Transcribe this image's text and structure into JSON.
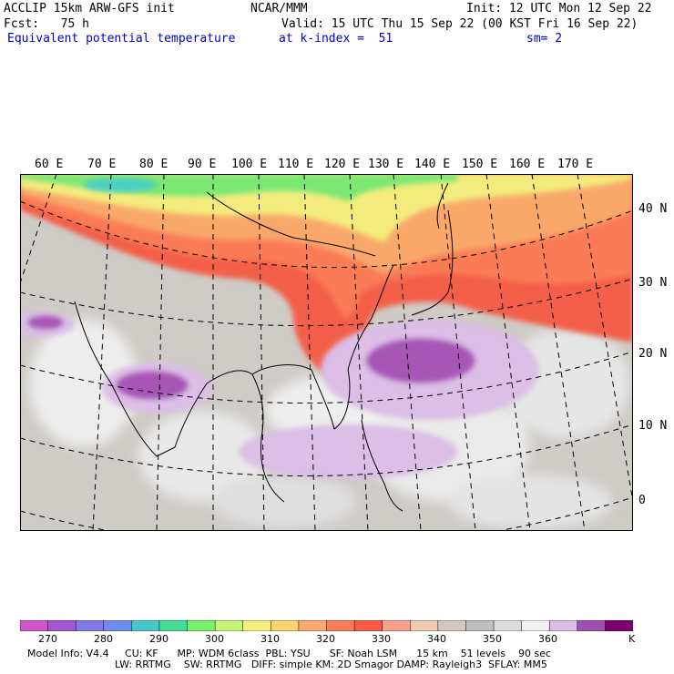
{
  "header": {
    "line1_left": "ACCLIP 15km ARW-GFS init",
    "line1_center": "NCAR/MMM",
    "line1_right": "Init: 12 UTC Mon 12 Sep 22",
    "line2_left": "Fcst:   75 h",
    "line2_right": "Valid: 15 UTC Thu 15 Sep 22 (00 KST Fri 16 Sep 22)",
    "line3_left": "Equivalent potential temperature",
    "line3_center": "at k-index =  51",
    "line3_right": "sm= 2"
  },
  "map": {
    "lon_labels": [
      "60 E",
      "70 E",
      "80 E",
      "90 E",
      "100 E",
      "110 E",
      "120 E",
      "130 E",
      "140 E",
      "150 E",
      "160 E",
      "170 E"
    ],
    "lat_labels": [
      "40 N",
      "30 N",
      "20 N",
      "10 N",
      "0"
    ]
  },
  "colorbar": {
    "colors": [
      "#d255c8",
      "#a655d2",
      "#8278e6",
      "#6e8cf0",
      "#46c8c8",
      "#46dc96",
      "#78f06e",
      "#c8f578",
      "#f5f07d",
      "#fad26e",
      "#faaa6e",
      "#fa7d5a",
      "#fa5a46",
      "#faa08c",
      "#f0c8b4",
      "#d2c8c0",
      "#bebebe",
      "#dcdcdc",
      "#f0f0f0",
      "#dcbee6",
      "#a050b4",
      "#7d006e"
    ],
    "labels": [
      "270",
      "280",
      "290",
      "300",
      "310",
      "320",
      "330",
      "340",
      "350",
      "360"
    ],
    "unit": "K"
  },
  "footer": {
    "line1": "Model Info: V4.4     CU: KF      MP: WDM 6class  PBL: YSU      SF: Noah LSM      15 km    51 levels    90 sec",
    "line2": "LW: RRTMG    SW: RRTMG   DIFF: simple KM: 2D Smagor DAMP: Rayleigh3  SFLAY: MM5"
  }
}
